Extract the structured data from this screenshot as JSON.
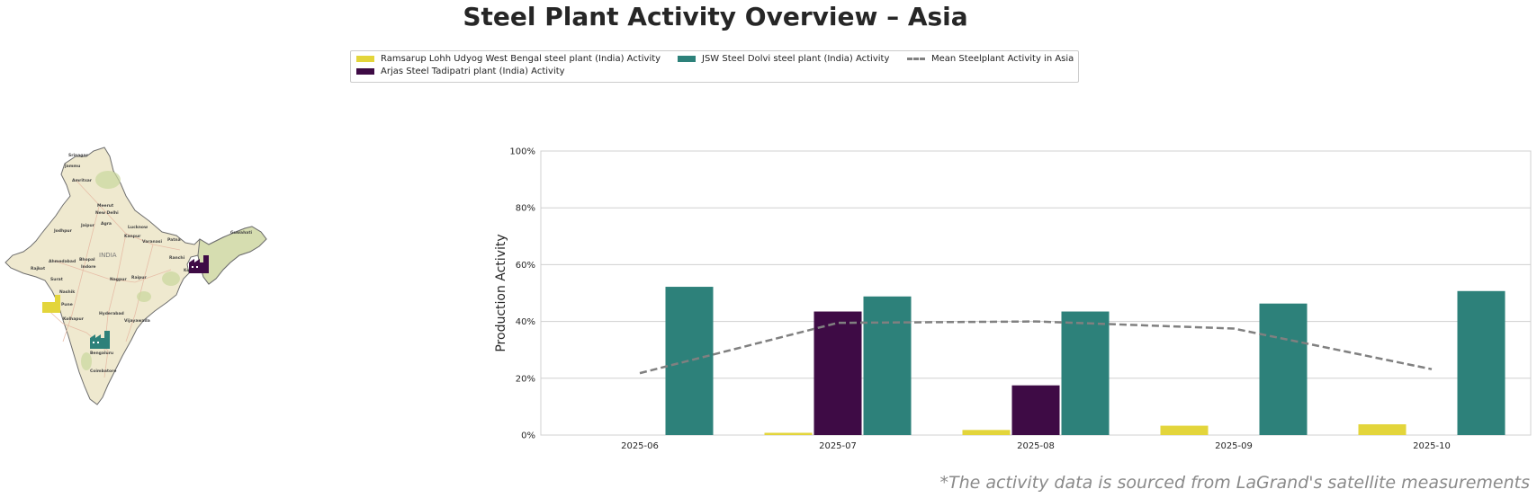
{
  "title": "Steel Plant Activity Overview – Asia",
  "legend": {
    "items": [
      {
        "label": "Ramsarup Lohh Udyog West Bengal steel plant (India) Activity",
        "color": "#e3d53b",
        "type": "bar"
      },
      {
        "label": "Arjas Steel Tadipatri plant (India) Activity",
        "color": "#3e0b45",
        "type": "bar"
      },
      {
        "label": "JSW Steel Dolvi steel plant (India) Activity",
        "color": "#2d817a",
        "type": "bar"
      },
      {
        "label": "Mean Steelplant Activity in Asia",
        "color": "#808080",
        "type": "dashed-line"
      }
    ]
  },
  "map": {
    "country_label": "INDIA",
    "city_labels": [
      "Srinagar",
      "Jammu",
      "Amritsar",
      "Meerut",
      "New Delhi",
      "Jaipur",
      "Agra",
      "Lucknow",
      "Kanpur",
      "Varanasi",
      "Patna",
      "Guwahati",
      "Jodhpur",
      "Ahmedabad",
      "Bhopal",
      "Indore",
      "Ranchi",
      "Kolkata",
      "Rajkot",
      "Surat",
      "Nagpur",
      "Raipur",
      "Nashik",
      "Pune",
      "Hyderabad",
      "Kolhapur",
      "Vijayawada",
      "Bengaluru",
      "Coimbatore"
    ],
    "markers": [
      {
        "plant": "Ramsarup Lohh Udyog West Bengal",
        "color": "#e3d53b",
        "icon": "factory-icon"
      },
      {
        "plant": "Arjas Steel Tadipatri",
        "color": "#3e0b45",
        "icon": "factory-icon"
      },
      {
        "plant": "JSW Steel Dolvi",
        "color": "#2d817a",
        "icon": "factory-icon"
      }
    ]
  },
  "chart_data": {
    "type": "bar",
    "categories": [
      "2025-06",
      "2025-07",
      "2025-08",
      "2025-09",
      "2025-10"
    ],
    "series": [
      {
        "name": "Ramsarup Lohh Udyog West Bengal steel plant (India) Activity",
        "color": "#e3d53b",
        "values": [
          0,
          0.8,
          1.8,
          3.3,
          3.8
        ]
      },
      {
        "name": "Arjas Steel Tadipatri plant (India) Activity",
        "color": "#3e0b45",
        "values": [
          0,
          43.5,
          17.5,
          0,
          0
        ]
      },
      {
        "name": "JSW Steel Dolvi steel plant (India) Activity",
        "color": "#2d817a",
        "values": [
          52.2,
          48.8,
          43.5,
          46.3,
          50.7
        ]
      }
    ],
    "line": {
      "name": "Mean Steelplant Activity in Asia",
      "color": "#808080",
      "style": "dashed",
      "values": [
        21.8,
        39.5,
        40.0,
        37.5,
        23.2
      ]
    },
    "ylabel": "Production Activity",
    "xlabel": "",
    "ylim": [
      0,
      100
    ],
    "yticks": [
      0,
      20,
      40,
      60,
      80,
      100
    ],
    "ytick_labels": [
      "0%",
      "20%",
      "40%",
      "60%",
      "80%",
      "100%"
    ],
    "grid": "horizontal"
  },
  "footnote": "*The activity data is sourced from LaGrand's satellite measurements"
}
